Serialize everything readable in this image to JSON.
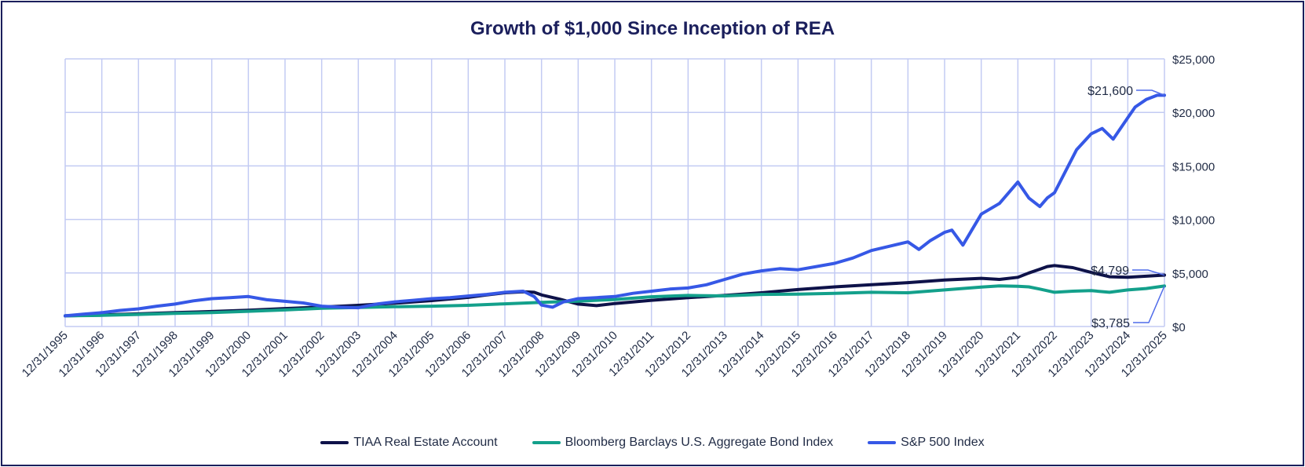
{
  "chart_data": {
    "type": "line",
    "title": "Growth of $1,000 Since Inception of REA",
    "xlabel": "",
    "ylabel": "",
    "x_tick_labels": [
      "12/31/1995",
      "12/31/1996",
      "12/31/1997",
      "12/31/1998",
      "12/31/1999",
      "12/31/2000",
      "12/31/2001",
      "12/31/2002",
      "12/31/2003",
      "12/31/2004",
      "12/31/2005",
      "12/31/2006",
      "12/31/2007",
      "12/31/2008",
      "12/31/2009",
      "12/31/2010",
      "12/31/2011",
      "12/31/2012",
      "12/31/2013",
      "12/31/2014",
      "12/31/2015",
      "12/31/2016",
      "12/31/2017",
      "12/31/2018",
      "12/31/2019",
      "12/31/2020",
      "12/31/2021",
      "12/31/2022",
      "12/31/2023",
      "12/31/2024",
      "12/31/2025"
    ],
    "x_range": [
      1995.0,
      2025.0
    ],
    "ylim": [
      0,
      25000
    ],
    "y_tick_labels": [
      "$0",
      "$5,000",
      "$10,000",
      "$15,000",
      "$20,000",
      "$25,000"
    ],
    "grid": true,
    "legend_position": "bottom",
    "series": [
      {
        "name": "TIAA Real Estate Account",
        "color": "#0e1249",
        "x": [
          1995.0,
          1996.0,
          1997.0,
          1998.0,
          1999.0,
          2000.0,
          2001.0,
          2002.0,
          2003.0,
          2004.0,
          2005.0,
          2006.0,
          2006.5,
          2007.0,
          2007.5,
          2007.8,
          2008.0,
          2008.5,
          2009.0,
          2009.5,
          2010.0,
          2011.0,
          2012.0,
          2013.0,
          2014.0,
          2015.0,
          2016.0,
          2017.0,
          2018.0,
          2019.0,
          2020.0,
          2020.5,
          2021.0,
          2021.3,
          2021.6,
          2021.8,
          2022.0,
          2022.5,
          2023.0,
          2023.5,
          2024.0,
          2024.5,
          2025.0
        ],
        "values": [
          1000,
          1080,
          1180,
          1300,
          1400,
          1520,
          1680,
          1820,
          1980,
          2180,
          2420,
          2720,
          2950,
          3150,
          3250,
          3200,
          2950,
          2550,
          2100,
          1950,
          2150,
          2450,
          2700,
          2900,
          3150,
          3450,
          3700,
          3900,
          4100,
          4350,
          4500,
          4400,
          4600,
          5000,
          5350,
          5600,
          5700,
          5500,
          5050,
          4650,
          4600,
          4700,
          4799
        ]
      },
      {
        "name": "Bloomberg Barclays U.S. Aggregate Bond Index",
        "color": "#13a08b",
        "x": [
          1995.0,
          1996.0,
          1997.0,
          1998.0,
          1999.0,
          2000.0,
          2001.0,
          2002.0,
          2003.0,
          2004.0,
          2005.0,
          2006.0,
          2007.0,
          2008.0,
          2009.0,
          2010.0,
          2011.0,
          2012.0,
          2013.0,
          2014.0,
          2015.0,
          2016.0,
          2017.0,
          2018.0,
          2019.0,
          2020.0,
          2020.5,
          2021.0,
          2021.3,
          2021.6,
          2022.0,
          2022.5,
          2023.0,
          2023.5,
          2024.0,
          2024.5,
          2025.0
        ],
        "values": [
          1000,
          1040,
          1130,
          1230,
          1300,
          1420,
          1550,
          1700,
          1780,
          1850,
          1900,
          1980,
          2120,
          2250,
          2370,
          2520,
          2780,
          2900,
          2860,
          3000,
          3030,
          3100,
          3200,
          3150,
          3420,
          3680,
          3800,
          3760,
          3700,
          3500,
          3200,
          3300,
          3350,
          3200,
          3420,
          3550,
          3785
        ]
      },
      {
        "name": "S&P 500 Index",
        "color": "#3658e6",
        "x": [
          1995.0,
          1995.5,
          1996.0,
          1996.5,
          1997.0,
          1997.5,
          1998.0,
          1998.5,
          1999.0,
          1999.5,
          2000.0,
          2000.5,
          2001.0,
          2001.5,
          2002.0,
          2002.5,
          2003.0,
          2003.5,
          2004.0,
          2004.5,
          2005.0,
          2005.5,
          2006.0,
          2006.5,
          2007.0,
          2007.5,
          2007.8,
          2008.0,
          2008.3,
          2008.6,
          2009.0,
          2009.5,
          2010.0,
          2010.5,
          2011.0,
          2011.5,
          2012.0,
          2012.5,
          2013.0,
          2013.5,
          2014.0,
          2014.5,
          2015.0,
          2015.5,
          2016.0,
          2016.5,
          2017.0,
          2017.5,
          2018.0,
          2018.3,
          2018.6,
          2019.0,
          2019.2,
          2019.5,
          2020.0,
          2020.5,
          2021.0,
          2021.3,
          2021.6,
          2021.8,
          2022.0,
          2022.3,
          2022.6,
          2023.0,
          2023.3,
          2023.6,
          2024.0,
          2024.2,
          2024.5,
          2024.8,
          2025.0
        ],
        "values": [
          1000,
          1150,
          1300,
          1500,
          1650,
          1900,
          2100,
          2400,
          2600,
          2700,
          2800,
          2500,
          2350,
          2200,
          1900,
          1800,
          1750,
          2100,
          2300,
          2450,
          2600,
          2700,
          2850,
          3000,
          3200,
          3300,
          2800,
          2000,
          1800,
          2300,
          2600,
          2700,
          2800,
          3100,
          3300,
          3500,
          3600,
          3900,
          4400,
          4900,
          5200,
          5400,
          5300,
          5600,
          5900,
          6400,
          7100,
          7500,
          7900,
          7200,
          8000,
          8800,
          9000,
          7600,
          10500,
          11500,
          13500,
          12000,
          11200,
          12000,
          12500,
          14500,
          16500,
          18000,
          18500,
          17500,
          19500,
          20500,
          21200,
          21600,
          21600
        ]
      }
    ],
    "annotations": [
      {
        "text": "$21,600",
        "x": 2025.0,
        "y": 21600
      },
      {
        "text": "$4,799",
        "x": 2025.0,
        "y": 4799
      },
      {
        "text": "$3,785",
        "x": 2025.0,
        "y": 3785
      }
    ]
  }
}
